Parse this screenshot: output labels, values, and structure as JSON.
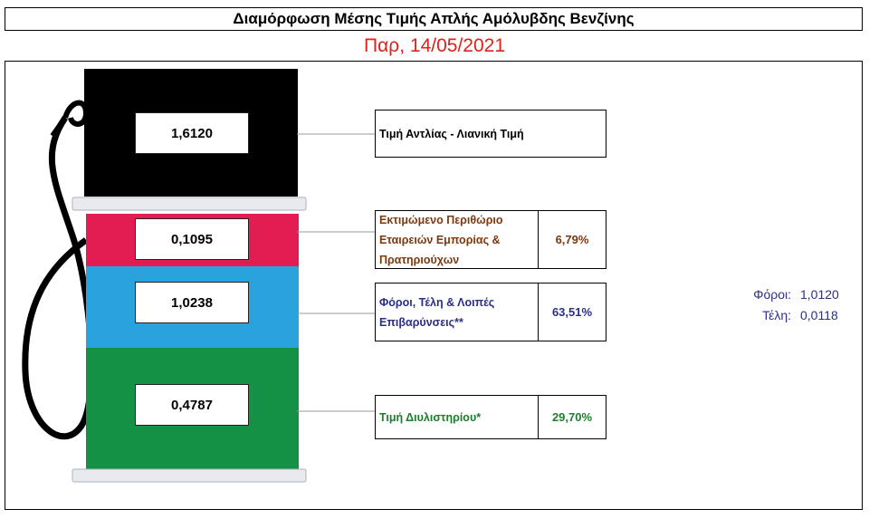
{
  "title": "Διαμόρφωση Μέσης Τιμής Απλής Αμόλυβδης Βενζίνης",
  "date": "Παρ, 14/05/2021",
  "chart_data": {
    "type": "stacked-bar",
    "total": {
      "value": "1,6120",
      "label": "Τιμή Αντλίας - Λιανική Τιμή"
    },
    "segments": [
      {
        "value": "0,1095",
        "label": "Εκτιμώμενο Περιθώριο Εταιρειών Εμπορίας & Πρατηριούχων",
        "percent": "6,79%",
        "color": "#e11d51",
        "text_color": "#7b3a10"
      },
      {
        "value": "1,0238",
        "label": "Φόροι, Τέλη & Λοιπές Επιβαρύνσεις**",
        "percent": "63,51%",
        "color": "#2aa3dc",
        "text_color": "#2b2f86"
      },
      {
        "value": "0,4787",
        "label": "Τιμή Διυλιστηρίου*",
        "percent": "29,70%",
        "color": "#159146",
        "text_color": "#1a7f2c"
      }
    ],
    "breakdown": [
      {
        "label": "Φόροι:",
        "value": "1,0120"
      },
      {
        "label": "Τέλη:",
        "value": "0,0118"
      }
    ]
  },
  "colors": {
    "pump_top": "#000000",
    "date": "#e0201b",
    "base_gray": "#e8eaee"
  }
}
